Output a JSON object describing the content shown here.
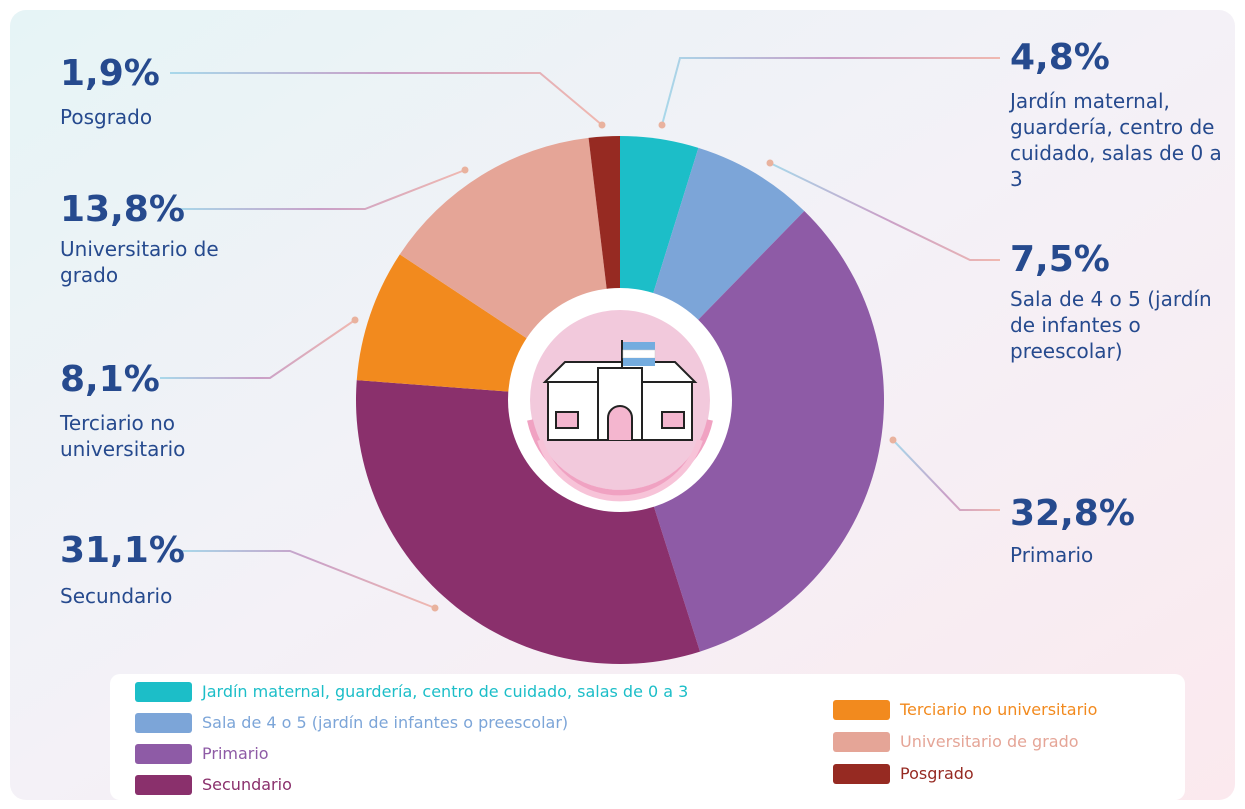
{
  "chart_data": {
    "type": "pie",
    "donut": true,
    "categories": [
      "Jardín maternal, guardería, centro de cuidado, salas de 0 a 3",
      "Sala de 4 o 5 (jardín de infantes o preescolar)",
      "Primario",
      "Secundario",
      "Terciario no universitario",
      "Universitario de grado",
      "Posgrado"
    ],
    "values": [
      4.8,
      7.5,
      32.8,
      31.1,
      8.1,
      13.8,
      1.9
    ],
    "value_labels": [
      "4,8%",
      "7,5%",
      "32,8%",
      "31,1%",
      "8,1%",
      "13,8%",
      "1,9%"
    ],
    "colors": [
      "#1cbec8",
      "#7ca5d8",
      "#8e5ba6",
      "#8a306c",
      "#f28a1e",
      "#e5a597",
      "#962a22"
    ],
    "legend": "bottom"
  }
}
